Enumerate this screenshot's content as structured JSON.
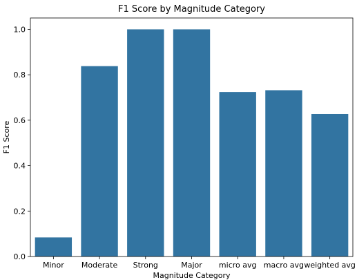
{
  "chart_data": {
    "type": "bar",
    "title": "F1 Score by Magnitude Category",
    "xlabel": "Magnitude Category",
    "ylabel": "F1 Score",
    "categories": [
      "Minor",
      "Moderate",
      "Strong",
      "Major",
      "micro avg",
      "macro avg",
      "weighted avg"
    ],
    "values": [
      0.084,
      0.838,
      1.0,
      1.0,
      0.724,
      0.732,
      0.627
    ],
    "ylim": [
      0,
      1.05
    ],
    "yticks": [
      "0.0",
      "0.2",
      "0.4",
      "0.6",
      "0.8",
      "1.0"
    ],
    "grid": false,
    "bar_color": "#3274a1"
  }
}
